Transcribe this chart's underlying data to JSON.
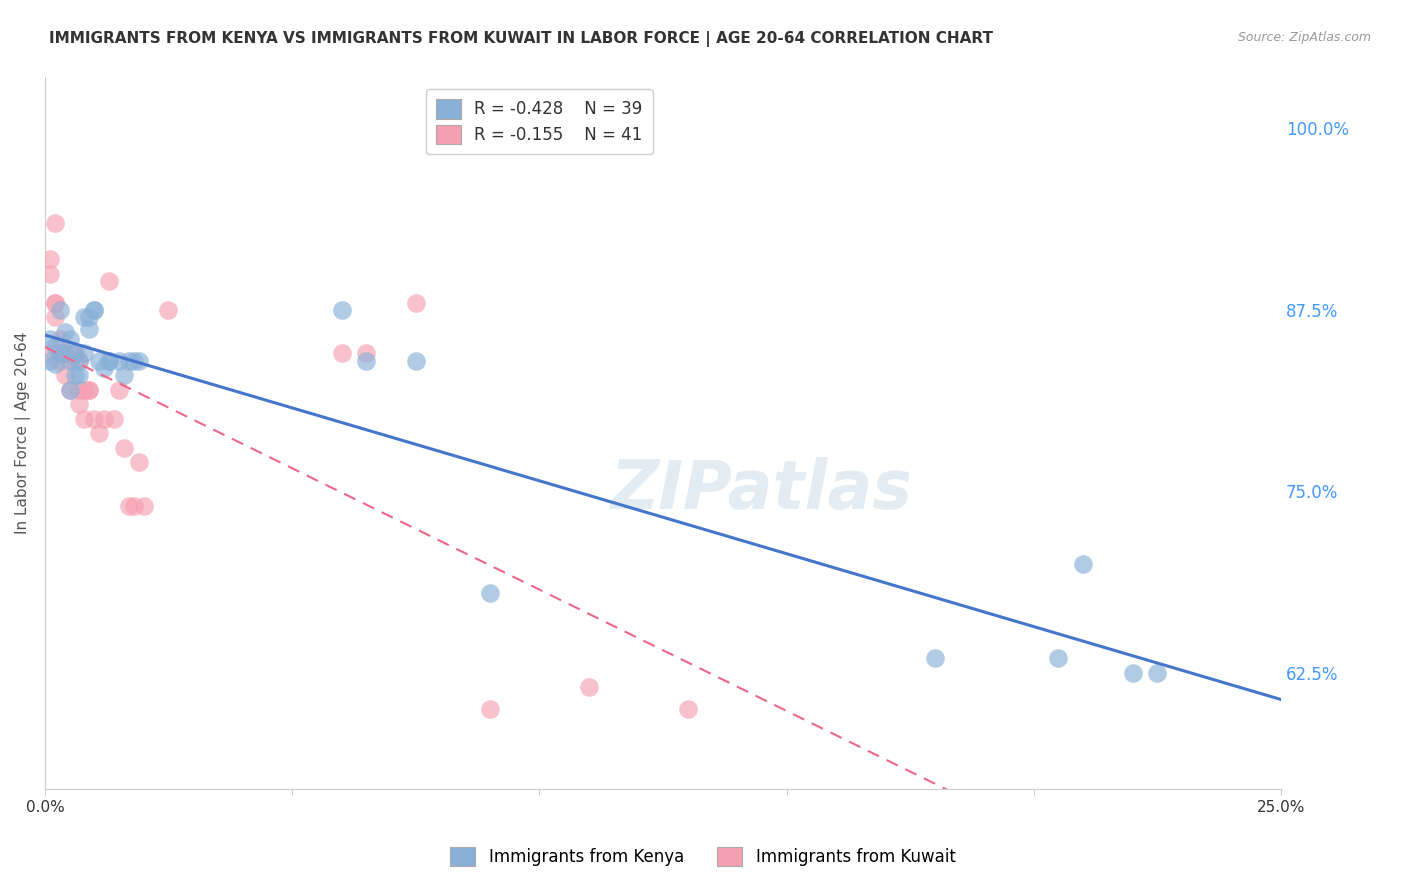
{
  "title": "IMMIGRANTS FROM KENYA VS IMMIGRANTS FROM KUWAIT IN LABOR FORCE | AGE 20-64 CORRELATION CHART",
  "source": "Source: ZipAtlas.com",
  "ylabel": "In Labor Force | Age 20-64",
  "right_yticks": [
    "100.0%",
    "87.5%",
    "75.0%",
    "62.5%"
  ],
  "right_ytick_vals": [
    1.0,
    0.875,
    0.75,
    0.625
  ],
  "xlim": [
    0.0,
    0.25
  ],
  "ylim": [
    0.545,
    1.035
  ],
  "kenya_R": "-0.428",
  "kenya_N": "39",
  "kuwait_R": "-0.155",
  "kuwait_N": "41",
  "kenya_color": "#89b0d8",
  "kuwait_color": "#f5a0b0",
  "kenya_line_color": "#4477cc",
  "kuwait_line_color": "#ee6688",
  "watermark_text": "ZIPatlas",
  "kenya_scatter_x": [
    0.001,
    0.001,
    0.002,
    0.002,
    0.003,
    0.003,
    0.004,
    0.004,
    0.005,
    0.005,
    0.005,
    0.006,
    0.006,
    0.007,
    0.007,
    0.008,
    0.008,
    0.009,
    0.009,
    0.01,
    0.01,
    0.011,
    0.012,
    0.013,
    0.013,
    0.015,
    0.016,
    0.017,
    0.018,
    0.019,
    0.06,
    0.065,
    0.075,
    0.09,
    0.18,
    0.205,
    0.21,
    0.22,
    0.225
  ],
  "kenya_scatter_y": [
    0.84,
    0.855,
    0.838,
    0.85,
    0.845,
    0.875,
    0.845,
    0.86,
    0.84,
    0.855,
    0.82,
    0.845,
    0.83,
    0.84,
    0.83,
    0.845,
    0.87,
    0.862,
    0.87,
    0.875,
    0.875,
    0.84,
    0.835,
    0.84,
    0.84,
    0.84,
    0.83,
    0.84,
    0.84,
    0.84,
    0.875,
    0.84,
    0.84,
    0.68,
    0.635,
    0.635,
    0.7,
    0.625,
    0.625
  ],
  "kuwait_scatter_x": [
    0.001,
    0.001,
    0.001,
    0.002,
    0.002,
    0.002,
    0.002,
    0.003,
    0.003,
    0.003,
    0.004,
    0.004,
    0.005,
    0.005,
    0.006,
    0.006,
    0.007,
    0.007,
    0.007,
    0.008,
    0.008,
    0.009,
    0.009,
    0.01,
    0.011,
    0.012,
    0.013,
    0.014,
    0.015,
    0.016,
    0.017,
    0.018,
    0.019,
    0.02,
    0.025,
    0.06,
    0.065,
    0.075,
    0.09,
    0.11,
    0.13
  ],
  "kuwait_scatter_y": [
    0.91,
    0.9,
    0.845,
    0.88,
    0.88,
    0.87,
    0.935,
    0.845,
    0.855,
    0.84,
    0.845,
    0.83,
    0.845,
    0.82,
    0.845,
    0.84,
    0.84,
    0.82,
    0.81,
    0.82,
    0.8,
    0.82,
    0.82,
    0.8,
    0.79,
    0.8,
    0.895,
    0.8,
    0.82,
    0.78,
    0.74,
    0.74,
    0.77,
    0.74,
    0.875,
    0.845,
    0.845,
    0.88,
    0.6,
    0.615,
    0.6
  ],
  "title_fontsize": 11,
  "axis_label_fontsize": 11,
  "tick_fontsize": 11,
  "legend_R_color": "#cc3333",
  "legend_N_color": "#2255cc"
}
